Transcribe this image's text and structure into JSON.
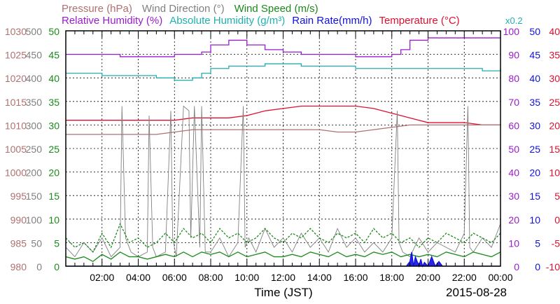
{
  "chart_data": {
    "type": "line",
    "legend_row1": [
      {
        "text": "Pressure (hPa)",
        "color": "#b07070"
      },
      {
        "text": "Wind Direction (°)",
        "color": "#808080"
      },
      {
        "text": "Wind Speed (m/s)",
        "color": "#1a8a1a"
      }
    ],
    "legend_row2": [
      {
        "text": "Relative Humidity (%)",
        "color": "#9a1ad0"
      },
      {
        "text": "Absolute Humidity (g/m³)",
        "color": "#20b0b0"
      },
      {
        "text": "Rain Rate(mm/h)",
        "color": "#1010e0"
      },
      {
        "text": "Temperature (°C)",
        "color": "#e01030"
      },
      {
        "text": "x0.2",
        "color": "#20b0b0"
      }
    ],
    "xlabel": "Time (JST)",
    "date_label": "2015-08-28",
    "x_ticks": [
      "02:00",
      "04:00",
      "06:00",
      "08:00",
      "10:00",
      "12:00",
      "14:00",
      "16:00",
      "18:00",
      "20:00",
      "22:00",
      "00:00"
    ],
    "x_tick_hours": [
      2,
      4,
      6,
      8,
      10,
      12,
      14,
      16,
      18,
      20,
      22,
      24
    ],
    "xlim_hours": [
      0,
      24
    ],
    "grid": true,
    "axes": {
      "pressure": {
        "color": "#b07070",
        "ticks": [
          "1030",
          "1025",
          "1020",
          "1015",
          "1010",
          "1005",
          "1000",
          "995",
          "990",
          "985",
          "980"
        ],
        "range": [
          980,
          1030
        ]
      },
      "wind_direction": {
        "color": "#808080",
        "ticks": [
          "500",
          "450",
          "400",
          "350",
          "300",
          "250",
          "200",
          "150",
          "100",
          "50",
          "0"
        ],
        "range": [
          0,
          500
        ]
      },
      "wind_speed": {
        "color": "#1a8a1a",
        "ticks": [
          "50",
          "45",
          "40",
          "35",
          "30",
          "25",
          "20",
          "15",
          "10",
          "5",
          "0"
        ],
        "range": [
          0,
          50
        ]
      },
      "humidity": {
        "color": "#9a1ad0",
        "ticks": [
          "100",
          "90",
          "80",
          "70",
          "60",
          "50",
          "40",
          "30",
          "20",
          "10",
          "0"
        ],
        "range": [
          0,
          100
        ]
      },
      "rain_rate": {
        "color": "#1010e0",
        "ticks": [
          "50",
          "45",
          "40",
          "35",
          "30",
          "25",
          "20",
          "15",
          "10",
          "5",
          "0"
        ],
        "range": [
          0,
          50
        ]
      },
      "temperature": {
        "color": "#e01030",
        "ticks": [
          "40",
          "35",
          "30",
          "25",
          "20",
          "15",
          "10",
          "5",
          "0",
          "-5",
          "-10"
        ],
        "range": [
          -10,
          40
        ]
      }
    },
    "series": [
      {
        "name": "Relative Humidity (%)",
        "axis": "humidity",
        "color": "#9a1ad0",
        "x": [
          0,
          1,
          2,
          3,
          4,
          5,
          6,
          7,
          7.5,
          8,
          9,
          10,
          11,
          12,
          13,
          14,
          15,
          16,
          17,
          18,
          18.5,
          19,
          20,
          21,
          22,
          23,
          24
        ],
        "y": [
          90,
          90,
          90,
          89,
          89,
          89,
          90,
          90,
          91,
          94,
          96,
          94,
          92,
          91,
          90,
          90,
          90,
          89,
          89,
          90,
          92,
          96,
          97,
          97,
          97,
          97,
          97
        ]
      },
      {
        "name": "Absolute Humidity (g/m³)",
        "axis": "humidity",
        "color": "#20b0b0",
        "x": [
          0,
          1,
          2,
          3,
          4,
          5,
          6,
          7,
          7.5,
          8,
          9,
          10,
          11,
          12,
          13,
          14,
          15,
          16,
          17,
          18,
          19,
          20,
          21,
          22,
          23,
          24
        ],
        "y": [
          82,
          82,
          81,
          81,
          81,
          80,
          79,
          80,
          82,
          84,
          85,
          85,
          86,
          86,
          85,
          85,
          85,
          84,
          84,
          84,
          84,
          84,
          84,
          84,
          83,
          84
        ]
      },
      {
        "name": "Temperature (°C)",
        "axis": "temperature",
        "color": "#e01030",
        "x": [
          0,
          1,
          2,
          3,
          4,
          5,
          6,
          7,
          8,
          9,
          10,
          11,
          12,
          13,
          14,
          15,
          16,
          17,
          18,
          19,
          20,
          21,
          22,
          23,
          24
        ],
        "y": [
          21,
          21,
          21,
          21,
          21,
          21,
          21,
          21.5,
          21.5,
          21.5,
          22,
          23,
          23.5,
          24,
          24,
          24,
          24,
          23.5,
          22.5,
          21.5,
          20.5,
          20.5,
          20.5,
          20,
          20
        ]
      },
      {
        "name": "Pressure (hPa)",
        "axis": "pressure",
        "color": "#b07070",
        "x": [
          0,
          1,
          2,
          3,
          4,
          5,
          6,
          7,
          8,
          9,
          10,
          11,
          12,
          13,
          14,
          15,
          16,
          17,
          18,
          19,
          20,
          21,
          22,
          23,
          24
        ],
        "y": [
          1008,
          1008,
          1008,
          1008,
          1008,
          1008,
          1008.5,
          1009,
          1009,
          1009,
          1009,
          1009,
          1009,
          1009,
          1009,
          1008.5,
          1008.5,
          1009,
          1009.5,
          1010,
          1010,
          1010,
          1010,
          1010,
          1010
        ]
      },
      {
        "name": "Wind Direction (°)",
        "axis": "wind_direction",
        "color": "#808080",
        "x": [
          0,
          0.5,
          1,
          1.5,
          2,
          2.5,
          3,
          3.1,
          3.3,
          3.6,
          4,
          4.5,
          4.6,
          4.8,
          5,
          5.5,
          5.8,
          5.9,
          6.1,
          6.5,
          6.8,
          6.9,
          7.1,
          7.4,
          7.5,
          7.7,
          8,
          8.5,
          9,
          9.5,
          9.8,
          9.9,
          10.1,
          10.5,
          11,
          11.5,
          12,
          12.5,
          13,
          13.5,
          14,
          14.5,
          15,
          15.5,
          16,
          16.5,
          17,
          17.5,
          18,
          18.3,
          18.4,
          18.6,
          19,
          19.5,
          20,
          20.5,
          21,
          21.5,
          22,
          22.2,
          22.3,
          22.5,
          23,
          23.5,
          24
        ],
        "y": [
          40,
          20,
          50,
          30,
          60,
          20,
          40,
          340,
          60,
          30,
          20,
          30,
          320,
          40,
          20,
          30,
          330,
          60,
          20,
          340,
          330,
          60,
          340,
          40,
          340,
          30,
          30,
          60,
          20,
          50,
          340,
          40,
          60,
          30,
          80,
          40,
          60,
          30,
          70,
          40,
          60,
          30,
          80,
          40,
          60,
          30,
          50,
          30,
          60,
          330,
          50,
          30,
          20,
          60,
          30,
          50,
          40,
          30,
          70,
          340,
          40,
          30,
          60,
          40,
          90
        ]
      },
      {
        "name": "Wind Speed (m/s)",
        "axis": "wind_speed",
        "color": "#1a8a1a",
        "x": [
          0,
          0.5,
          1,
          1.5,
          2,
          2.5,
          3,
          3.5,
          4,
          4.5,
          5,
          5.5,
          6,
          6.5,
          7,
          7.5,
          8,
          8.5,
          9,
          9.5,
          10,
          10.5,
          11,
          11.5,
          12,
          12.5,
          13,
          13.5,
          14,
          14.5,
          15,
          15.5,
          16,
          16.5,
          17,
          17.5,
          18,
          18.5,
          19,
          19.5,
          20,
          20.5,
          21,
          21.5,
          22,
          22.5,
          23,
          23.5,
          24
        ],
        "y": [
          2,
          1.5,
          2,
          1,
          2.5,
          1.5,
          3,
          2,
          2,
          1.5,
          2,
          2.5,
          2,
          3,
          2,
          3,
          2.5,
          3,
          2,
          3,
          2,
          2.5,
          3,
          2,
          2,
          2.5,
          2,
          3,
          2.5,
          2,
          3,
          2,
          2.5,
          2,
          3,
          2.5,
          3,
          2,
          2.5,
          2,
          2.5,
          2,
          3,
          2.5,
          2,
          3,
          2.5,
          2,
          3
        ]
      },
      {
        "name": "Wind Speed gust",
        "axis": "wind_speed",
        "color": "#1a8a1a",
        "x": [
          0,
          0.5,
          1,
          1.5,
          2,
          2.5,
          3,
          3.5,
          4,
          4.5,
          5,
          5.5,
          6,
          6.5,
          7,
          7.5,
          8,
          8.5,
          9,
          9.5,
          10,
          10.5,
          11,
          11.5,
          12,
          12.5,
          13,
          13.5,
          14,
          14.5,
          15,
          15.5,
          16,
          16.5,
          17,
          17.5,
          18,
          18.5,
          19,
          19.5,
          20,
          20.5,
          21,
          21.5,
          22,
          22.5,
          23,
          23.5,
          24
        ],
        "y": [
          6,
          4,
          5,
          3,
          7,
          4,
          9,
          5,
          6,
          4,
          5,
          7,
          5,
          8,
          6,
          7,
          5,
          8,
          6,
          7,
          5,
          6,
          8,
          6,
          5,
          7,
          6,
          8,
          6,
          5,
          7,
          6,
          7,
          5,
          8,
          6,
          7,
          5,
          6,
          4,
          6,
          5,
          7,
          6,
          5,
          7,
          6,
          5,
          7
        ]
      },
      {
        "name": "Rain Rate(mm/h)",
        "axis": "rain_rate",
        "color": "#1010e0",
        "x": [
          0,
          18.8,
          19.0,
          19.1,
          19.2,
          19.3,
          19.5,
          19.6,
          19.7,
          19.8,
          20.0,
          20.2,
          20.4,
          20.6,
          20.8,
          21.0,
          24
        ],
        "y": [
          0,
          0,
          1,
          3,
          0,
          2,
          0,
          1.5,
          0,
          0.8,
          0,
          2,
          0,
          1,
          0,
          0,
          0
        ]
      }
    ]
  }
}
